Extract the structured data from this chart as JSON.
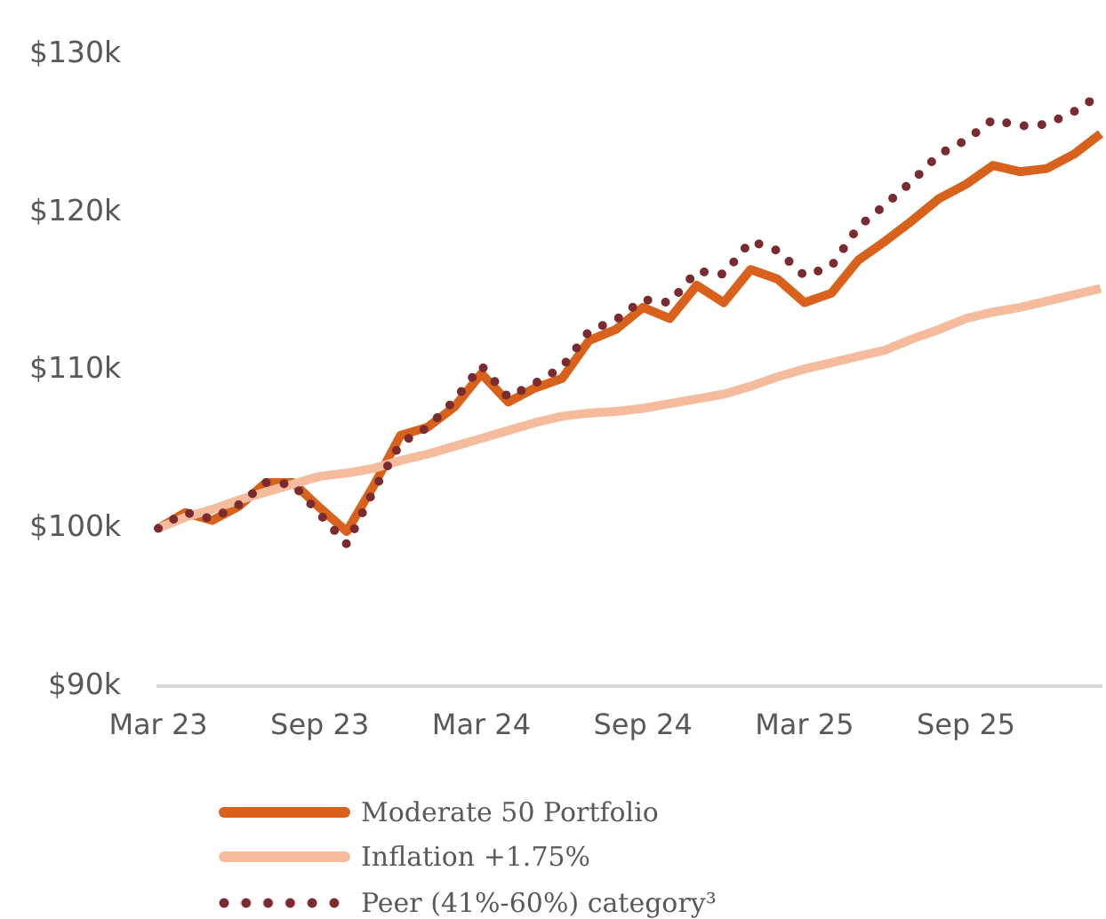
{
  "chart_data": {
    "type": "line",
    "categories": [
      "Mar 23",
      null,
      null,
      null,
      null,
      null,
      "Sep 23",
      null,
      null,
      null,
      null,
      null,
      "Mar 24",
      null,
      null,
      null,
      null,
      null,
      "Sep 24",
      null,
      null,
      null,
      null,
      null,
      "Mar 25",
      null,
      null,
      null,
      null,
      null,
      "Sep 25",
      null,
      null,
      null,
      null,
      null
    ],
    "series": [
      {
        "name": "Moderate 50 Portfolio",
        "color": "#d8621c",
        "values": [
          100,
          101.0,
          100.5,
          101.4,
          102.9,
          102.9,
          101.3,
          99.8,
          102.7,
          105.9,
          106.4,
          107.7,
          109.8,
          108.0,
          108.9,
          109.5,
          111.9,
          112.6,
          114.0,
          113.3,
          115.4,
          114.3,
          116.4,
          115.8,
          114.3,
          114.9,
          117.0,
          118.2,
          119.5,
          120.9,
          121.8,
          123.0,
          122.6,
          122.8,
          123.7,
          125.0
        ]
      },
      {
        "name": "Inflation +1.75%",
        "color": "#f4bc9c",
        "values": [
          100,
          100.7,
          101.2,
          101.8,
          102.3,
          102.8,
          103.3,
          103.5,
          103.8,
          104.3,
          104.7,
          105.2,
          105.7,
          106.2,
          106.7,
          107.1,
          107.3,
          107.4,
          107.6,
          107.9,
          108.2,
          108.5,
          109.0,
          109.6,
          110.1,
          110.5,
          110.9,
          111.3,
          112.0,
          112.6,
          113.3,
          113.7,
          114.0,
          114.4,
          114.8,
          115.2
        ]
      },
      {
        "name": "Peer (41%-60%) category³",
        "color": "#7a2b2f",
        "line_style": "dotted",
        "values": [
          100,
          101.0,
          100.6,
          101.5,
          102.9,
          102.8,
          100.9,
          99.0,
          102.4,
          105.4,
          106.4,
          108.1,
          110.3,
          108.3,
          109.2,
          110.2,
          112.5,
          113.2,
          114.5,
          114.3,
          116.3,
          116.1,
          118.2,
          117.6,
          116.0,
          116.6,
          119.1,
          120.5,
          122.0,
          123.7,
          124.6,
          125.9,
          125.5,
          125.6,
          126.4,
          127.5
        ]
      }
    ],
    "ylim": [
      90,
      130
    ],
    "yticks": [
      {
        "value": 90,
        "label": "$90k"
      },
      {
        "value": 100,
        "label": "$100k"
      },
      {
        "value": 110,
        "label": "$110k"
      },
      {
        "value": 120,
        "label": "$120k"
      },
      {
        "value": 130,
        "label": "$130k"
      }
    ],
    "legend": "bottom",
    "marker": "none"
  }
}
